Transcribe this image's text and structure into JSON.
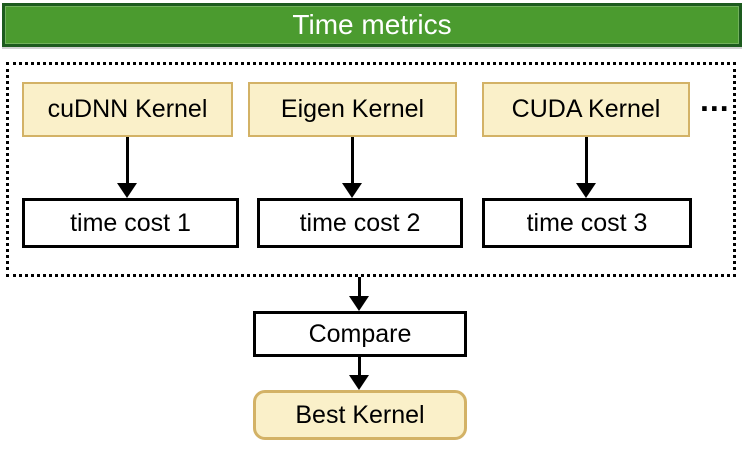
{
  "header": {
    "title": "Time metrics"
  },
  "colors": {
    "header_bg": "#4B9B2F",
    "header_border": "#1D5B1E",
    "header_text": "#FFFFFF",
    "kernel_bg": "#FAF0C9",
    "kernel_border": "#D3B266",
    "box_border": "#000000",
    "box_bg": "#FFFFFF",
    "arrow": "#000000",
    "text": "#000000"
  },
  "diagram": {
    "kernels": [
      {
        "label": "cuDNN Kernel"
      },
      {
        "label": "Eigen Kernel"
      },
      {
        "label": "CUDA Kernel"
      }
    ],
    "ellipsis": "...",
    "time_costs": [
      {
        "label": "time cost 1"
      },
      {
        "label": "time cost 2"
      },
      {
        "label": "time cost 3"
      }
    ],
    "compare": {
      "label": "Compare"
    },
    "best_kernel": {
      "label": "Best Kernel"
    }
  }
}
